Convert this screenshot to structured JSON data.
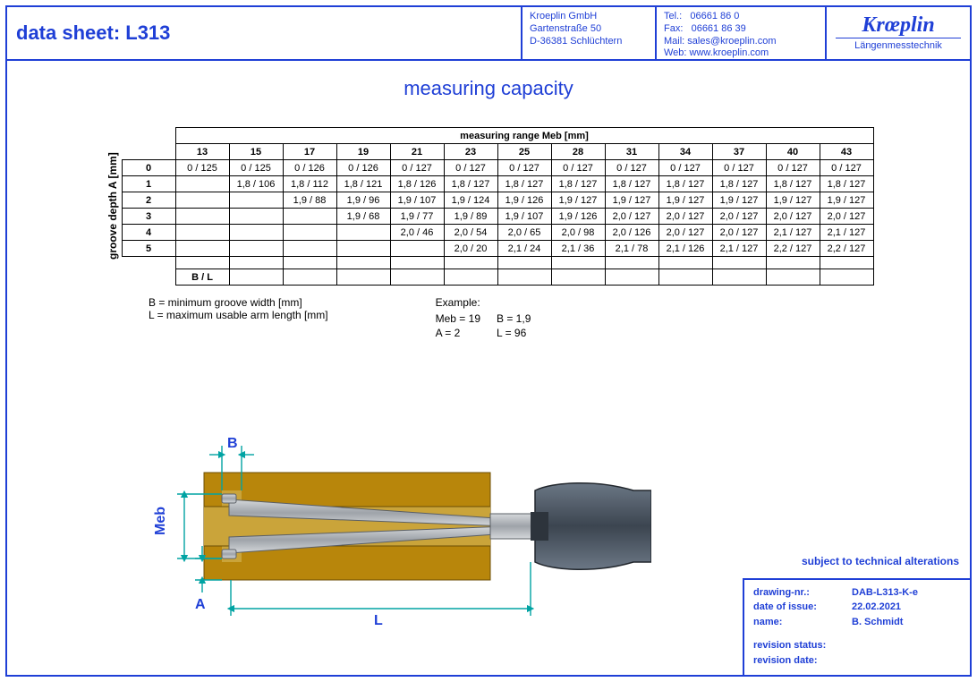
{
  "header": {
    "title": "data sheet:  L313",
    "address": {
      "l1": "Kroeplin GmbH",
      "l2": "Gartenstraße 50",
      "l3": "D-36381 Schlüchtern"
    },
    "contact": {
      "tel_k": "Tel.:",
      "tel_v": "06661 86 0",
      "fax_k": "Fax:",
      "fax_v": "06661 86 39",
      "mail_k": "Mail:",
      "mail_v": "sales@kroeplin.com",
      "web_k": "Web:",
      "web_v": "www.kroeplin.com"
    },
    "logo": {
      "main": "Krœplin",
      "sub": "Längenmesstechnik"
    }
  },
  "section_title": "measuring capacity",
  "table": {
    "top_label": "measuring range   Meb   [mm]",
    "side_label": "groove depth   A\n[mm]",
    "cols": [
      "13",
      "15",
      "17",
      "19",
      "21",
      "23",
      "25",
      "28",
      "31",
      "34",
      "37",
      "40",
      "43"
    ],
    "row_ids": [
      "0",
      "1",
      "2",
      "3",
      "4",
      "5"
    ],
    "rows": [
      [
        "0 / 125",
        "0 / 125",
        "0 / 126",
        "0 / 126",
        "0 / 127",
        "0 / 127",
        "0 / 127",
        "0 / 127",
        "0 / 127",
        "0 / 127",
        "0 / 127",
        "0 / 127",
        "0 / 127"
      ],
      [
        "",
        "1,8 / 106",
        "1,8 / 112",
        "1,8 / 121",
        "1,8 / 126",
        "1,8 / 127",
        "1,8 / 127",
        "1,8 / 127",
        "1,8 / 127",
        "1,8 / 127",
        "1,8 / 127",
        "1,8 / 127",
        "1,8 / 127"
      ],
      [
        "",
        "",
        "1,9 / 88",
        "1,9 / 96",
        "1,9 / 107",
        "1,9 / 124",
        "1,9 / 126",
        "1,9 / 127",
        "1,9 / 127",
        "1,9 / 127",
        "1,9 / 127",
        "1,9 / 127",
        "1,9 / 127"
      ],
      [
        "",
        "",
        "",
        "1,9 / 68",
        "1,9 / 77",
        "1,9 / 89",
        "1,9 / 107",
        "1,9 / 126",
        "2,0 / 127",
        "2,0 / 127",
        "2,0 / 127",
        "2,0 / 127",
        "2,0 / 127"
      ],
      [
        "",
        "",
        "",
        "",
        "2,0 / 46",
        "2,0 / 54",
        "2,0 / 65",
        "2,0 / 98",
        "2,0 / 126",
        "2,0 / 127",
        "2,0 / 127",
        "2,1 / 127",
        "2,1 / 127"
      ],
      [
        "",
        "",
        "",
        "",
        "",
        "2,0 / 20",
        "2,1 / 24",
        "2,1 / 36",
        "2,1 / 78",
        "2,1 / 126",
        "2,1 / 127",
        "2,2 / 127",
        "2,2 / 127"
      ]
    ],
    "bl_label": "B / L"
  },
  "legend": {
    "b": "B = minimum groove width [mm]",
    "l": "L = maximum usable arm length [mm]",
    "example_label": "Example:",
    "ex": {
      "meb_k": "Meb = 19",
      "b_k": "B = 1,9",
      "a_k": "A = 2",
      "l_k": "L = 96"
    }
  },
  "diagram": {
    "labels": {
      "B": "B",
      "Meb": "Meb",
      "A": "A",
      "L": "L"
    },
    "colors": {
      "dim": "#00a3a3",
      "block_fill": "#b8860b",
      "block_dark": "#8a6207",
      "probe_fill": "#b9bcc0",
      "probe_edge": "#555b63",
      "handle_fill": "#4f5a66",
      "handle_dark": "#2d343c"
    }
  },
  "footnote": "subject to technical alterations",
  "titleblock": {
    "drawing_k": "drawing-nr.:",
    "drawing_v": "DAB-L313-K-e",
    "date_k": "date of issue:",
    "date_v": "22.02.2021",
    "name_k": "name:",
    "name_v": "B. Schmidt",
    "rev_status_k": "revision status:",
    "rev_status_v": "",
    "rev_date_k": "revision date:",
    "rev_date_v": ""
  }
}
